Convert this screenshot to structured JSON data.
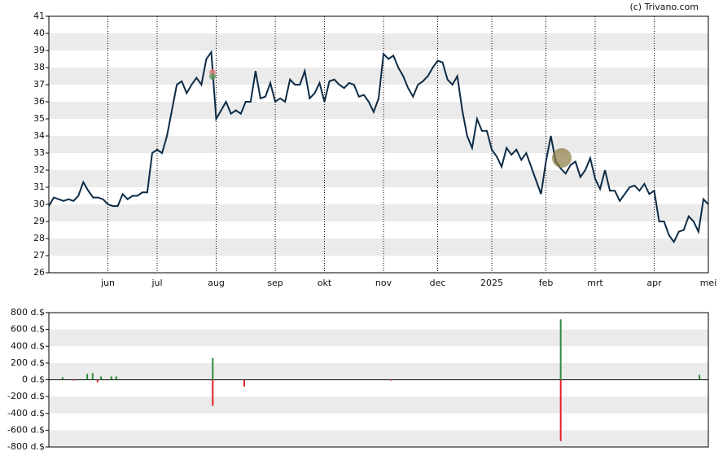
{
  "chart_data": [
    {
      "type": "line",
      "source": "(c) Trivano.com",
      "color": "#0d2b45",
      "values": [
        29.9,
        30.4,
        30.3,
        30.2,
        30.3,
        30.2,
        30.5,
        31.3,
        30.8,
        30.4,
        30.4,
        30.3,
        30.0,
        29.9,
        29.9,
        30.6,
        30.3,
        30.5,
        30.5,
        30.7,
        30.7,
        33.0,
        33.2,
        33.0,
        34.0,
        35.5,
        37.0,
        37.2,
        36.5,
        37.0,
        37.4,
        37.0,
        38.5,
        38.9,
        35.0,
        35.5,
        36.0,
        35.3,
        35.5,
        35.3,
        36.0,
        36.0,
        37.8,
        36.2,
        36.3,
        37.1,
        36.0,
        36.2,
        36.0,
        37.3,
        37.0,
        37.0,
        37.8,
        36.2,
        36.5,
        37.1,
        36.0,
        37.2,
        37.3,
        37.0,
        36.8,
        37.1,
        37.0,
        36.3,
        36.4,
        36.0,
        35.4,
        36.2,
        38.8,
        38.5,
        38.7,
        38.0,
        37.5,
        36.8,
        36.3,
        37.0,
        37.2,
        37.5,
        38.0,
        38.4,
        38.3,
        37.3,
        37.0,
        37.5,
        35.5,
        34.0,
        33.3,
        35.0,
        34.3,
        34.3,
        33.2,
        32.8,
        32.2,
        33.3,
        32.9,
        33.2,
        32.6,
        33.0,
        32.2,
        31.4,
        30.6,
        32.5,
        34.0,
        32.5,
        32.1,
        31.8,
        32.3,
        32.5,
        31.6,
        32.0,
        32.7,
        31.5,
        30.9,
        32.0,
        30.8,
        30.8,
        30.2,
        30.6,
        31.0,
        31.1,
        30.8,
        31.2,
        30.6,
        30.8,
        29.0,
        29.0,
        28.2,
        27.8,
        28.4,
        28.5,
        29.3,
        29.0,
        28.4,
        30.3,
        30.0
      ],
      "xlim": [
        0,
        134
      ],
      "xticks": [
        {
          "value": 12,
          "label": "jun"
        },
        {
          "value": 22,
          "label": "jul"
        },
        {
          "value": 34,
          "label": "aug"
        },
        {
          "value": 46,
          "label": "sep"
        },
        {
          "value": 56,
          "label": "okt"
        },
        {
          "value": 68,
          "label": "nov"
        },
        {
          "value": 79,
          "label": "dec"
        },
        {
          "value": 90,
          "label": "2025"
        },
        {
          "value": 101,
          "label": "feb"
        },
        {
          "value": 111,
          "label": "mrt"
        },
        {
          "value": 123,
          "label": "apr"
        },
        {
          "value": 134,
          "label": "mei"
        }
      ],
      "ylim": [
        26,
        41
      ],
      "yticks": [
        26,
        27,
        28,
        29,
        30,
        31,
        32,
        33,
        34,
        35,
        36,
        37,
        38,
        39,
        40,
        41
      ],
      "grid": true
    },
    {
      "type": "bar",
      "positive_color": "#2e8b3e",
      "negative_color": "#e0202a",
      "x": [
        2.8,
        5.1,
        7.8,
        8.9,
        9.9,
        10.6,
        12.7,
        13.7,
        33.3,
        33.3,
        39.7,
        69.5,
        104,
        104,
        132.2
      ],
      "values": [
        30,
        -10,
        70,
        80,
        -30,
        40,
        40,
        40,
        260,
        -310,
        -80,
        -10,
        720,
        -730,
        60
      ],
      "xlim": [
        0,
        134
      ],
      "ylim": [
        -800,
        800
      ],
      "yticks": [
        {
          "value": -800,
          "label": "-800 d.$"
        },
        {
          "value": -600,
          "label": "-600 d.$"
        },
        {
          "value": -400,
          "label": "-400 d.$"
        },
        {
          "value": -200,
          "label": "-200 d.$"
        },
        {
          "value": 0,
          "label": "0 d.$"
        },
        {
          "value": 200,
          "label": "200 d.$"
        },
        {
          "value": 400,
          "label": "400 d.$"
        },
        {
          "value": 600,
          "label": "600 d.$"
        },
        {
          "value": 800,
          "label": "800 d.$"
        }
      ],
      "grid": true
    }
  ]
}
